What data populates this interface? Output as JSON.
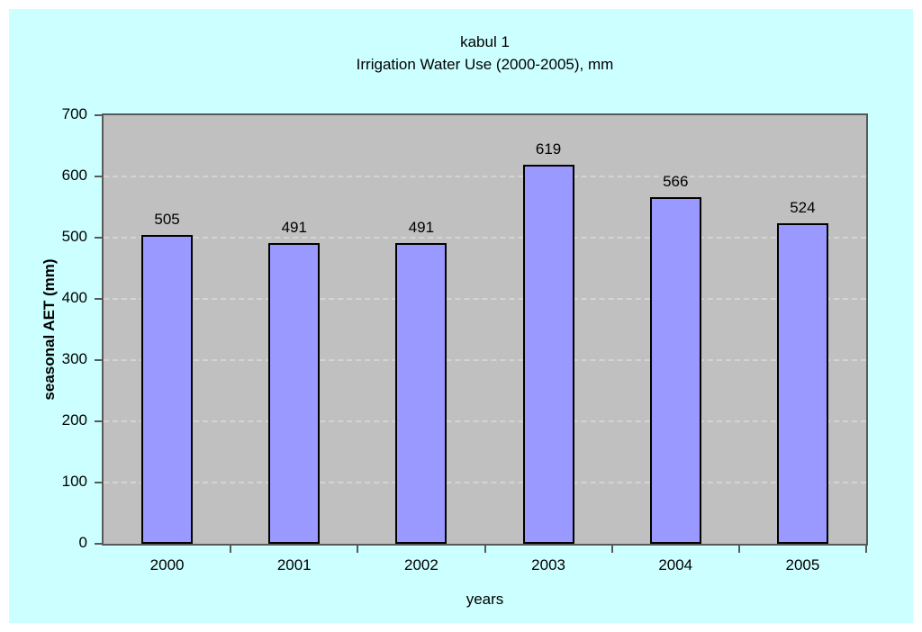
{
  "chart_data": {
    "type": "bar",
    "title": "kabul 1",
    "subtitle": "Irrigation Water Use (2000-2005), mm",
    "categories": [
      "2000",
      "2001",
      "2002",
      "2003",
      "2004",
      "2005"
    ],
    "values": [
      505,
      491,
      491,
      619,
      566,
      524
    ],
    "xlabel": "years",
    "ylabel": "seasonal AET (mm)",
    "ylim": [
      0,
      700
    ],
    "yticks": [
      0,
      100,
      200,
      300,
      400,
      500,
      600,
      700
    ],
    "grid": "horizontal-dashed",
    "legend": "none",
    "data_labels": "above-bars",
    "colors": {
      "page_bg": "#ffffff",
      "chart_bg": "#ccffff",
      "plot_bg": "#c0c0c0",
      "bar_fill": "#9999ff",
      "bar_border": "#000000",
      "gridline": "#d4d4d4",
      "axis": "#595959",
      "text": "#000000"
    }
  }
}
